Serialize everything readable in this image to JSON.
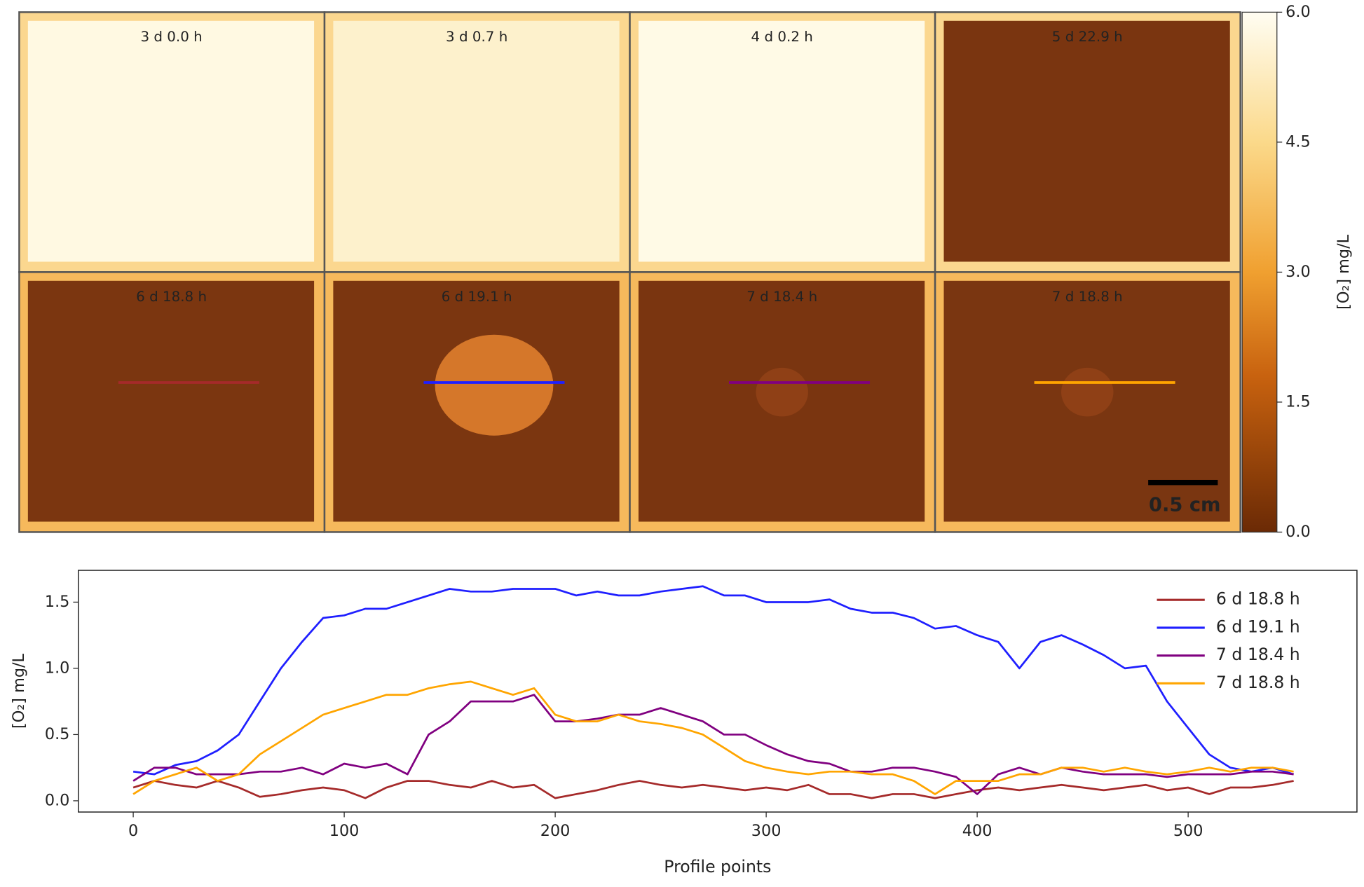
{
  "panels": [
    {
      "label": "3 d 0.0 h"
    },
    {
      "label": "3 d 0.7 h"
    },
    {
      "label": "4 d 0.2 h"
    },
    {
      "label": "5 d 22.9 h"
    },
    {
      "label": "6 d 18.8 h"
    },
    {
      "label": "6 d 19.1 h"
    },
    {
      "label": "7 d 18.4 h"
    },
    {
      "label": "7 d 18.8 h"
    }
  ],
  "scale_bar": "0.5 cm",
  "colorbar": {
    "label": "[O₂] mg/L",
    "ylim": [
      0,
      6
    ],
    "yticks": [
      {
        "value": 0,
        "label": "0.0"
      },
      {
        "value": 1.5,
        "label": "1.5"
      },
      {
        "value": 3,
        "label": "3.0"
      },
      {
        "value": 4.5,
        "label": "4.5"
      },
      {
        "value": 6,
        "label": "6.0"
      }
    ]
  },
  "chart_data": {
    "type": "line",
    "xlabel": "Profile points",
    "ylabel": "[O₂] mg/L",
    "legend": "upper right",
    "x": [
      0,
      10,
      20,
      30,
      40,
      50,
      60,
      70,
      80,
      90,
      100,
      110,
      120,
      130,
      140,
      150,
      160,
      170,
      180,
      190,
      200,
      210,
      220,
      230,
      240,
      250,
      260,
      270,
      280,
      290,
      300,
      310,
      320,
      330,
      340,
      350,
      360,
      370,
      380,
      390,
      400,
      410,
      420,
      430,
      440,
      450,
      460,
      470,
      480,
      490,
      500,
      510,
      520,
      530,
      540,
      550
    ],
    "series": [
      {
        "name": "6 d 18.8 h",
        "color": "#a52a2a",
        "values": [
          0.1,
          0.15,
          0.12,
          0.1,
          0.15,
          0.1,
          0.03,
          0.05,
          0.08,
          0.1,
          0.08,
          0.02,
          0.1,
          0.15,
          0.15,
          0.12,
          0.1,
          0.15,
          0.1,
          0.12,
          0.02,
          0.05,
          0.08,
          0.12,
          0.15,
          0.12,
          0.1,
          0.12,
          0.1,
          0.08,
          0.1,
          0.08,
          0.12,
          0.05,
          0.05,
          0.02,
          0.05,
          0.05,
          0.02,
          0.05,
          0.08,
          0.1,
          0.08,
          0.1,
          0.12,
          0.1,
          0.08,
          0.1,
          0.12,
          0.08,
          0.1,
          0.05,
          0.1,
          0.1,
          0.12,
          0.15
        ]
      },
      {
        "name": "6 d 19.1 h",
        "color": "#1f1fff",
        "values": [
          0.22,
          0.2,
          0.27,
          0.3,
          0.38,
          0.5,
          0.75,
          1.0,
          1.2,
          1.38,
          1.4,
          1.45,
          1.45,
          1.5,
          1.55,
          1.6,
          1.58,
          1.58,
          1.6,
          1.6,
          1.6,
          1.55,
          1.58,
          1.55,
          1.55,
          1.58,
          1.6,
          1.62,
          1.55,
          1.55,
          1.5,
          1.5,
          1.5,
          1.52,
          1.45,
          1.42,
          1.42,
          1.38,
          1.3,
          1.32,
          1.25,
          1.2,
          1.0,
          1.2,
          1.25,
          1.18,
          1.1,
          1.0,
          1.02,
          0.75,
          0.55,
          0.35,
          0.25,
          0.22,
          0.25,
          0.2
        ]
      },
      {
        "name": "7 d 18.4 h",
        "color": "#800080",
        "values": [
          0.15,
          0.25,
          0.25,
          0.2,
          0.2,
          0.2,
          0.22,
          0.22,
          0.25,
          0.2,
          0.28,
          0.25,
          0.28,
          0.2,
          0.5,
          0.6,
          0.75,
          0.75,
          0.75,
          0.8,
          0.6,
          0.6,
          0.62,
          0.65,
          0.65,
          0.7,
          0.65,
          0.6,
          0.5,
          0.5,
          0.42,
          0.35,
          0.3,
          0.28,
          0.22,
          0.22,
          0.25,
          0.25,
          0.22,
          0.18,
          0.05,
          0.2,
          0.25,
          0.2,
          0.25,
          0.22,
          0.2,
          0.2,
          0.2,
          0.18,
          0.2,
          0.2,
          0.2,
          0.22,
          0.22,
          0.2
        ]
      },
      {
        "name": "7 d 18.8 h",
        "color": "#ffa500",
        "values": [
          0.05,
          0.15,
          0.2,
          0.25,
          0.15,
          0.2,
          0.35,
          0.45,
          0.55,
          0.65,
          0.7,
          0.75,
          0.8,
          0.8,
          0.85,
          0.88,
          0.9,
          0.85,
          0.8,
          0.85,
          0.65,
          0.6,
          0.6,
          0.65,
          0.6,
          0.58,
          0.55,
          0.5,
          0.4,
          0.3,
          0.25,
          0.22,
          0.2,
          0.22,
          0.22,
          0.2,
          0.2,
          0.15,
          0.05,
          0.15,
          0.15,
          0.15,
          0.2,
          0.2,
          0.25,
          0.25,
          0.22,
          0.25,
          0.22,
          0.2,
          0.22,
          0.25,
          0.22,
          0.25,
          0.25,
          0.22
        ]
      }
    ],
    "xlim": [
      -26,
      580
    ],
    "ylim": [
      -0.085,
      1.74
    ],
    "xticks": [
      0,
      100,
      200,
      300,
      400,
      500
    ],
    "yticks": [
      {
        "value": 0,
        "label": "0.0"
      },
      {
        "value": 0.5,
        "label": "0.5"
      },
      {
        "value": 1,
        "label": "1.0"
      },
      {
        "value": 1.5,
        "label": "1.5"
      }
    ]
  }
}
